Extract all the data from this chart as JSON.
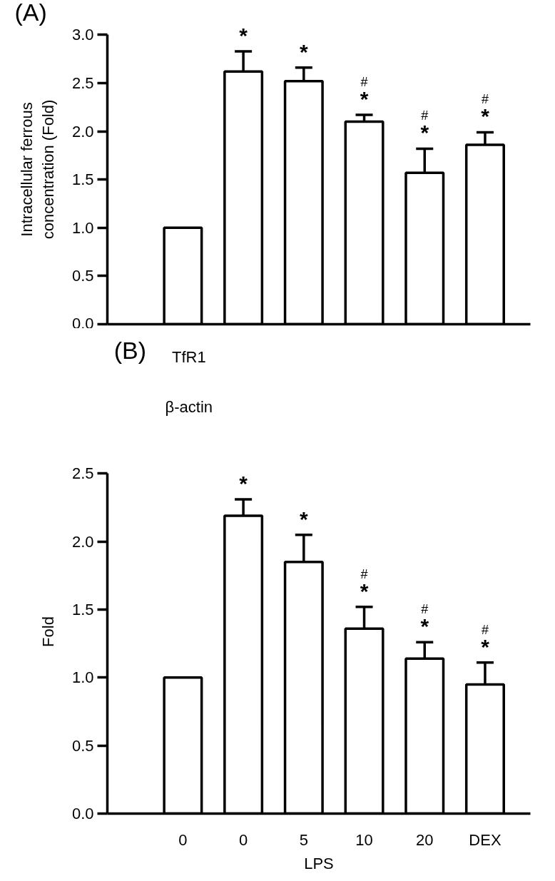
{
  "chart_data": [
    {
      "type": "bar",
      "annotations": [
        "(A)"
      ],
      "ylabel": "Intracellular ferrous concentration (Fold)",
      "categories": [
        null,
        null,
        null,
        null,
        null,
        null
      ],
      "color": "#ffffff",
      "values": [
        1.0,
        2.62,
        2.52,
        2.1,
        1.57,
        1.86
      ],
      "errors": [
        null,
        0.21,
        0.14,
        0.07,
        0.25,
        0.13
      ],
      "value_labels": [
        null,
        "*",
        "*",
        "#\n*",
        "#\n*",
        "#\n*"
      ],
      "ylim": [
        0,
        3
      ],
      "yticks": [
        {
          "value": 0,
          "label": "0.0"
        },
        {
          "value": 0.5,
          "label": "0.5"
        },
        {
          "value": 1,
          "label": "1.0"
        },
        {
          "value": 1.5,
          "label": "1.5"
        },
        {
          "value": 2,
          "label": "2.0"
        },
        {
          "value": 2.5,
          "label": "2.5"
        },
        {
          "value": 3,
          "label": "3.0"
        }
      ],
      "grid": false
    },
    {
      "type": "bar",
      "annotations": [
        "(B)",
        "TfR1",
        "β-actin"
      ],
      "ylabel": "Fold",
      "xlabel": "LPS",
      "categories": [
        "0",
        "0",
        "5",
        "10",
        "20",
        "DEX"
      ],
      "color": "#ffffff",
      "values": [
        1.0,
        2.19,
        1.85,
        1.36,
        1.14,
        0.95
      ],
      "errors": [
        null,
        0.12,
        0.2,
        0.16,
        0.12,
        0.16
      ],
      "value_labels": [
        null,
        "*",
        "*",
        "#\n*",
        "#\n*",
        "#\n*"
      ],
      "ylim": [
        0,
        2.5
      ],
      "yticks": [
        {
          "value": 0,
          "label": "0.0"
        },
        {
          "value": 0.5,
          "label": "0.5"
        },
        {
          "value": 1,
          "label": "1.0"
        },
        {
          "value": 1.5,
          "label": "1.5"
        },
        {
          "value": 2,
          "label": "2.0"
        },
        {
          "value": 2.5,
          "label": "2.5"
        }
      ],
      "grid": false
    }
  ]
}
